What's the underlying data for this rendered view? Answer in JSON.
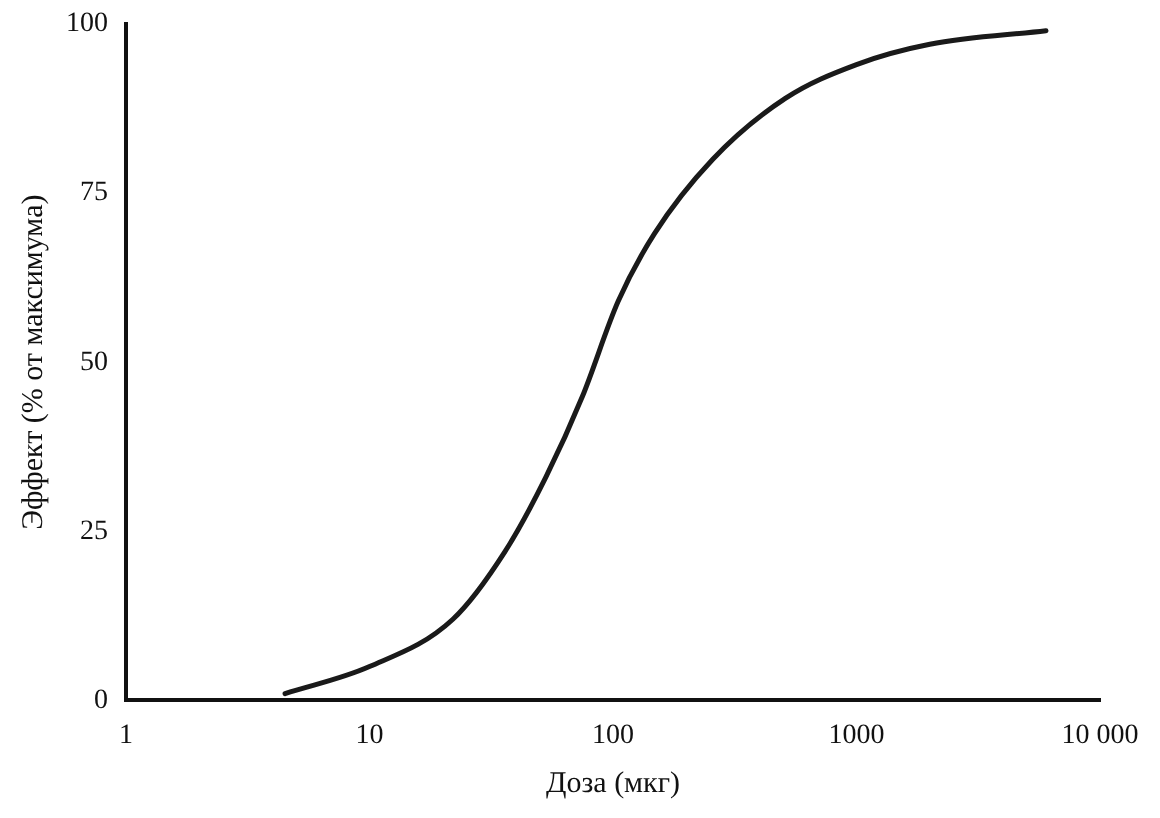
{
  "chart_data": {
    "type": "line",
    "xlabel": "Доза (мкг)",
    "ylabel": "Эффект (% от максимума)",
    "log": "x",
    "xlim": [
      1,
      10000
    ],
    "xticks": [
      1,
      10,
      100,
      1000,
      {
        "value": 10000,
        "label": "10 000"
      }
    ],
    "ylim": [
      0,
      100
    ],
    "yticks": [
      0,
      25,
      50,
      75,
      100
    ],
    "grid": false,
    "legend": false,
    "marker": "none",
    "line_style": "solid",
    "series": [
      {
        "color": "#1a1a1a",
        "x": [
          4.5,
          10,
          22,
          36,
          53,
          75,
          105,
          148,
          257,
          510,
          1000,
          2000,
          6000
        ],
        "values": [
          1,
          5,
          12,
          22,
          33,
          45,
          59,
          69,
          80,
          89,
          94,
          97,
          99
        ]
      }
    ]
  }
}
